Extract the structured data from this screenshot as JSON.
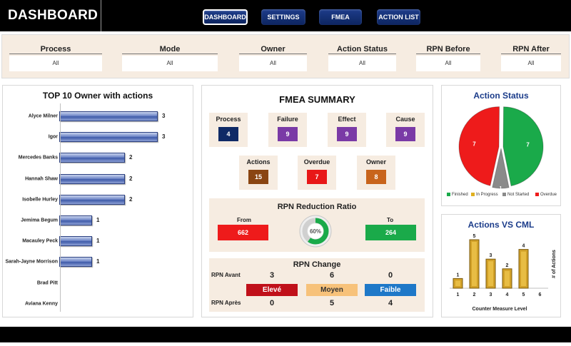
{
  "header": {
    "title": "DASHBOARD",
    "nav": [
      {
        "label": "DASHBOARD",
        "active": true
      },
      {
        "label": "SETTINGS",
        "active": false
      },
      {
        "label": "FMEA",
        "active": false
      },
      {
        "label": "ACTION LIST",
        "active": false
      }
    ]
  },
  "filters": [
    {
      "label": "Process",
      "value": "All"
    },
    {
      "label": "Mode",
      "value": "All"
    },
    {
      "label": "Owner",
      "value": "All"
    },
    {
      "label": "Action Status",
      "value": "All"
    },
    {
      "label": "RPN Before",
      "value": "All"
    },
    {
      "label": "RPN After",
      "value": "All"
    }
  ],
  "top_owners": {
    "title": "TOP 10 Owner with actions",
    "chart_data": {
      "type": "bar",
      "orientation": "horizontal",
      "categories": [
        "Alyce Milner",
        "Igor",
        "Mercedes Banks",
        "Hannah Shaw",
        "Isobelle Hurley",
        "Jemima Begum",
        "Macauley Peck",
        "Sarah-Jayne Morrison",
        "Brad Pitt",
        "Aviana Kenny"
      ],
      "values": [
        3,
        3,
        2,
        2,
        2,
        1,
        1,
        1,
        0,
        0
      ],
      "data_labels": [
        "3",
        "3",
        "2",
        "2",
        "2",
        "1",
        "1",
        "1",
        "",
        ""
      ]
    }
  },
  "summary": {
    "title": "FMEA SUMMARY",
    "cards": [
      {
        "label": "Process",
        "value": "4",
        "color": "#0f2a66"
      },
      {
        "label": "Failure",
        "value": "9",
        "color": "#7a3aa6"
      },
      {
        "label": "Effect",
        "value": "9",
        "color": "#7a3aa6"
      },
      {
        "label": "Cause",
        "value": "9",
        "color": "#7a3aa6"
      },
      {
        "label": "Actions",
        "value": "15",
        "color": "#8a4512"
      },
      {
        "label": "Overdue",
        "value": "7",
        "color": "#e81818"
      },
      {
        "label": "Owner",
        "value": "8",
        "color": "#c8641c"
      }
    ]
  },
  "rpn_ratio": {
    "title": "RPN Reduction Ratio",
    "from_label": "From",
    "to_label": "To",
    "from_value": "662",
    "to_value": "264",
    "percent_label": "60%",
    "percent_value": 60,
    "from_color": "#ee1b1b",
    "to_color": "#1aaa4a"
  },
  "rpn_change": {
    "title": "RPN Change",
    "before_label": "RPN Avant",
    "after_label": "RPN Après",
    "categories": [
      {
        "label": "Elevé",
        "before": "3",
        "after": "0",
        "color": "#c0101a",
        "text_color": "#ffffff"
      },
      {
        "label": "Moyen",
        "before": "6",
        "after": "5",
        "color": "#f7c27a",
        "text_color": "#333333"
      },
      {
        "label": "Faible",
        "before": "0",
        "after": "4",
        "color": "#1e78c8",
        "text_color": "#ffffff"
      }
    ]
  },
  "action_status": {
    "title": "Action Status",
    "chart_data": {
      "type": "pie",
      "categories": [
        "Finished",
        "In Progress",
        "Not Started",
        "Overdue"
      ],
      "values": [
        7,
        0,
        1,
        7
      ],
      "data_labels": [
        "7",
        "",
        "1",
        "7"
      ],
      "colors": [
        "#1aaa4a",
        "#e0b020",
        "#8a8a8a",
        "#ee1b1b"
      ],
      "legend": "bottom"
    }
  },
  "actions_vs_cml": {
    "title": "Actions VS CML",
    "chart_data": {
      "type": "bar",
      "categories": [
        "1",
        "2",
        "3",
        "4",
        "5",
        "6"
      ],
      "values": [
        1,
        5,
        3,
        2,
        4,
        0
      ],
      "data_labels": [
        "1",
        "5",
        "3",
        "2",
        "4",
        ""
      ],
      "xlabel": "Counter Measure Level",
      "ylabel": "# of Actions",
      "ylim": [
        0,
        5
      ],
      "bar_color": "#d2a128"
    }
  }
}
